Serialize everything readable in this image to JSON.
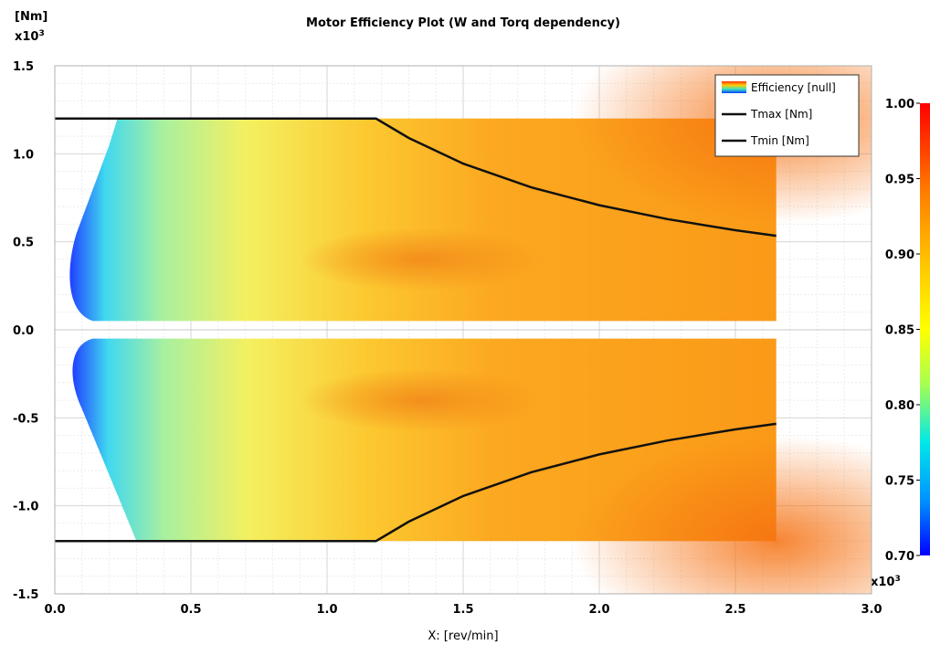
{
  "chart_data": {
    "type": "heatmap",
    "title": "Motor Efficiency Plot (W and Torq dependency)",
    "xlabel": "X:  [rev/min]",
    "x_multiplier": "x10",
    "x_multiplier_exp": "3",
    "ylabel_unit": "[Nm]",
    "y_multiplier": "x10",
    "y_multiplier_exp": "3",
    "xlim": [
      0,
      3.0
    ],
    "ylim": [
      -1.5,
      1.5
    ],
    "x_ticks": [
      0.0,
      0.5,
      1.0,
      1.5,
      2.0,
      2.5,
      3.0
    ],
    "y_ticks": [
      1.5,
      1.0,
      0.5,
      0.0,
      -0.5,
      -1.0,
      -1.5
    ],
    "grid": true,
    "legend_position": "top-right",
    "legend": [
      {
        "label": "Efficiency [null]",
        "kind": "rainbow"
      },
      {
        "label": "Tmax [Nm]",
        "kind": "line",
        "color": "#000000"
      },
      {
        "label": "Tmin [Nm]",
        "kind": "line",
        "color": "#000000"
      }
    ],
    "colorbar": {
      "min": 0.7,
      "max": 1.0,
      "ticks": [
        "1.00",
        "0.95",
        "0.90",
        "0.85",
        "0.80",
        "0.75",
        "0.70"
      ]
    },
    "region": {
      "speed_max": 2.65,
      "torque_max": 1.2
    },
    "series": [
      {
        "name": "Tmax [Nm]",
        "x": [
          0,
          1.18,
          1.3,
          1.5,
          1.75,
          2.0,
          2.25,
          2.5,
          2.65
        ],
        "y": [
          1.2,
          1.2,
          1.09,
          0.944,
          0.809,
          0.708,
          0.629,
          0.566,
          0.534
        ]
      },
      {
        "name": "Tmin [Nm]",
        "x": [
          0,
          1.18,
          1.3,
          1.5,
          1.75,
          2.0,
          2.25,
          2.5,
          2.65
        ],
        "y": [
          -1.2,
          -1.2,
          -1.09,
          -0.944,
          -0.809,
          -0.708,
          -0.629,
          -0.566,
          -0.534
        ]
      }
    ]
  }
}
